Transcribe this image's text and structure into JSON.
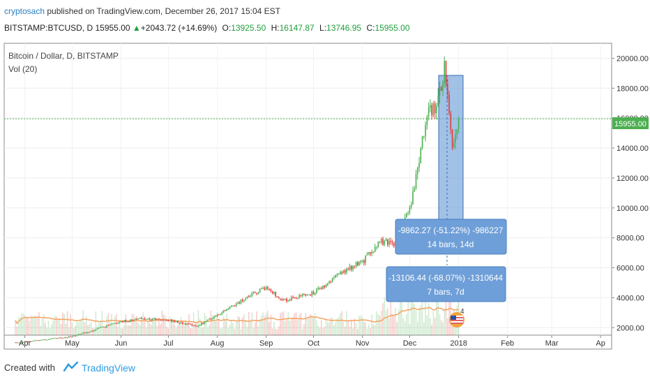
{
  "header": {
    "author": "cryptosach",
    "published_text": " published on TradingView.com, December 26, 2017 15:04 EST",
    "symbol": "BITSTAMP:BTCUSD, D",
    "last": "15955.00",
    "change": "+2043.72 (+14.69%)",
    "o_label": "O:",
    "o_value": "13925.50",
    "h_label": "H:",
    "h_value": "16147.87",
    "l_label": "L:",
    "l_value": "13746.95",
    "c_label": "C:",
    "c_value": "15955.00"
  },
  "chart_title": "Bitcoin / Dollar, D, BITSTAMP",
  "volume_label": "Vol (20)",
  "price_tag": "15955.00",
  "annotations": [
    {
      "line1": "-9862.27 (-51.22%) -986227",
      "line2": "14 bars, 14d"
    },
    {
      "line1": "-13106.44 (-68.07%) -1310644",
      "line2": "7 bars, 7d"
    }
  ],
  "event_badge": "4",
  "footer": {
    "created_with": "Created with",
    "brand": "TradingView"
  },
  "colors": {
    "up": "#4caf50",
    "down": "#e53935",
    "accent": "#2196f3",
    "ma": "#f4a460",
    "box": "#6f9fd8"
  },
  "chart_data": {
    "type": "candlestick",
    "title": "Bitcoin / Dollar, D, BITSTAMP",
    "x_tick_labels": [
      "Apr",
      "May",
      "Jun",
      "Jul",
      "Aug",
      "Sep",
      "Oct",
      "Nov",
      "Dec",
      "2018",
      "Feb",
      "Mar",
      "Ap"
    ],
    "y_tick_labels": [
      "20000.00",
      "18000.00",
      "16000.00",
      "14000.00",
      "12000.00",
      "10000.00",
      "8000.00",
      "6000.00",
      "4000.00",
      "2000.00"
    ],
    "ylim": [
      1500,
      21000
    ],
    "series": [
      {
        "name": "close",
        "values": [
          {
            "x": "Apr",
            "y": 1080
          },
          {
            "x": "May",
            "y": 1400
          },
          {
            "x": "Jun",
            "y": 2400
          },
          {
            "x": "Jul",
            "y": 2500
          },
          {
            "x": "Aug",
            "y": 2850
          },
          {
            "x": "Sep",
            "y": 4700
          },
          {
            "x": "Oct",
            "y": 4300
          },
          {
            "x": "Nov",
            "y": 6400
          },
          {
            "x": "Dec",
            "y": 9900
          },
          {
            "x": "Dec 7",
            "y": 16500
          },
          {
            "x": "Dec 17",
            "y": 19300
          },
          {
            "x": "Dec 22",
            "y": 13800
          },
          {
            "x": "Dec 26",
            "y": 15955
          }
        ]
      }
    ],
    "grid": true,
    "legend": "top-left"
  }
}
